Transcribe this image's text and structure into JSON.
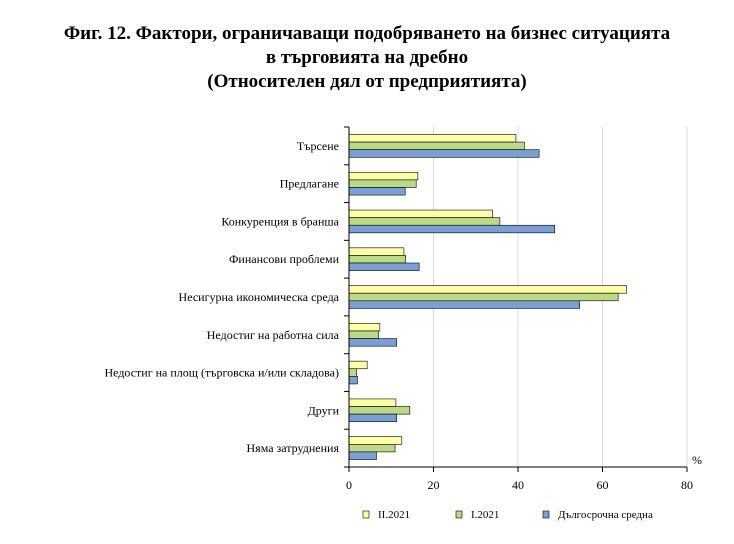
{
  "chart_data": {
    "type": "bar",
    "orientation": "horizontal",
    "title_lines": [
      "Фиг. 12. Фактори, ограничаващи подобряването на бизнес ситуацията",
      "в търговията на дребно",
      "(Относителен дял от предприятията)"
    ],
    "unit_label": "%",
    "categories": [
      "Търсене",
      "Предлагане",
      "Конкуренция в бранша",
      "Финансови проблеми",
      "Несигурна икономическа среда",
      "Недостиг на работна сила",
      "Недостиг на площ (търговска и/или складова)",
      "Други",
      "Няма затруднения"
    ],
    "series": [
      {
        "name": "II.2021",
        "color": "#ffffa8",
        "values": [
          39.5,
          16.3,
          34.0,
          13.0,
          65.7,
          7.3,
          4.3,
          11.1,
          12.5
        ]
      },
      {
        "name": "I.2021",
        "color": "#bcd987",
        "values": [
          41.5,
          15.9,
          35.7,
          13.4,
          63.7,
          7.0,
          1.8,
          14.4,
          10.9
        ]
      },
      {
        "name": "Дългосрочна средна",
        "color": "#7b9fd2",
        "values": [
          45.0,
          13.3,
          48.7,
          16.6,
          54.6,
          11.3,
          2.0,
          11.3,
          6.5
        ]
      }
    ],
    "x_ticks": [
      "0",
      "20",
      "40",
      "60",
      "80"
    ],
    "xlim": [
      0,
      80
    ],
    "grid": true,
    "legend_position": "bottom"
  }
}
